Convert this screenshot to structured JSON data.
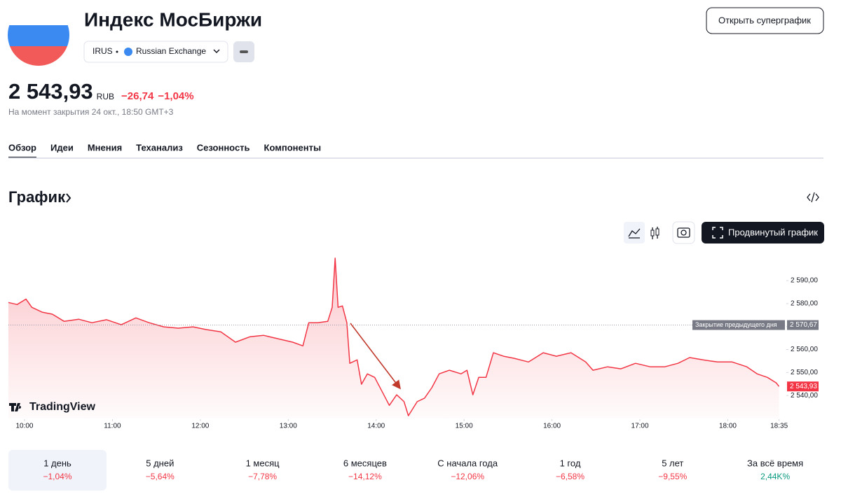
{
  "header": {
    "title": "Индекс МосБиржи",
    "ticker": "IRUS",
    "exchange": "Russian Exchange",
    "button": "Открыть суперграфик"
  },
  "quote": {
    "price": "2 543,93",
    "currency": "RUB",
    "change": "−26,74",
    "change_percent": "−1,04%",
    "note": "На момент закрытия 24 окт., 18:50 GMT+3"
  },
  "tabs": [
    "Обзор",
    "Идеи",
    "Мнения",
    "Теханализ",
    "Сезонность",
    "Компоненты"
  ],
  "section_title": "График",
  "toolbar": {
    "advanced_button": "Продвинутый график"
  },
  "chart_data": {
    "type": "line",
    "brand": "TradingView",
    "color": "#f23645",
    "x": [
      "09:49",
      "09:55",
      "10:01",
      "10:05",
      "10:12",
      "10:19",
      "10:27",
      "10:37",
      "10:46",
      "10:56",
      "11:06",
      "11:16",
      "11:25",
      "11:35",
      "11:45",
      "11:55",
      "12:04",
      "12:14",
      "12:24",
      "12:34",
      "12:43",
      "12:53",
      "13:03",
      "13:10",
      "13:14",
      "13:20",
      "13:27",
      "13:30",
      "13:32",
      "13:34",
      "13:37",
      "13:40",
      "13:42",
      "13:47",
      "13:50",
      "13:54",
      "13:59",
      "14:04",
      "14:09",
      "14:14",
      "14:19",
      "14:22",
      "14:28",
      "14:33",
      "14:38",
      "14:43",
      "14:50",
      "14:58",
      "15:02",
      "15:06",
      "15:10",
      "15:15",
      "15:20",
      "15:27",
      "15:34",
      "15:44",
      "15:54",
      "16:03",
      "16:13",
      "16:23",
      "16:28",
      "16:38",
      "16:47",
      "16:57",
      "17:07",
      "17:17",
      "17:26",
      "17:34",
      "17:43",
      "17:53",
      "18:03",
      "18:13",
      "18:20",
      "18:27",
      "18:33",
      "18:35"
    ],
    "values": [
      2580.5,
      2579.6,
      2582,
      2578.4,
      2576.3,
      2575.4,
      2572.3,
      2573.2,
      2571.7,
      2573,
      2570.8,
      2573.8,
      2571.7,
      2569.9,
      2569.3,
      2569.9,
      2568.7,
      2567.7,
      2563.2,
      2565.6,
      2566.2,
      2564.7,
      2563.2,
      2561.6,
      2571.7,
      2571.7,
      2572.3,
      2578.4,
      2599.8,
      2578.4,
      2579,
      2571.7,
      2554,
      2555.5,
      2544.9,
      2549.4,
      2547.9,
      2541.8,
      2535.7,
      2540.3,
      2537.3,
      2531.2,
      2537.3,
      2538.8,
      2543.4,
      2549.4,
      2551,
      2549.4,
      2551,
      2540.3,
      2547.9,
      2547.9,
      2558.6,
      2557.1,
      2556.2,
      2554.6,
      2558.6,
      2557.1,
      2558.6,
      2554.6,
      2551,
      2552.5,
      2551.6,
      2554,
      2552.5,
      2552.5,
      2554,
      2556.5,
      2555.5,
      2554.6,
      2554.6,
      2552.5,
      2549.4,
      2547.9,
      2545.5,
      2543.93
    ],
    "xlim": [
      "09:49",
      "18:39"
    ],
    "xticks": [
      "10:00",
      "11:00",
      "12:00",
      "13:00",
      "14:00",
      "15:00",
      "16:00",
      "17:00",
      "18:00",
      "18:35"
    ],
    "ylim": [
      2530,
      2601
    ],
    "yticks": [
      {
        "value": 2540,
        "label": "2 540,00"
      },
      {
        "value": 2550,
        "label": "2 550,00"
      },
      {
        "value": 2560,
        "label": "2 560,00"
      },
      {
        "value": 2570,
        "label": "2 570,00"
      },
      {
        "value": 2580,
        "label": "2 580,00"
      },
      {
        "value": 2590,
        "label": "2 590,00"
      }
    ],
    "grid": false,
    "previous_close": {
      "name": "Закрытие предыдущего дня",
      "value": 2570.67,
      "label": "2 570,67"
    },
    "last_value": {
      "value": 2543.93,
      "label": "2 543,93"
    }
  },
  "periods": [
    {
      "label": "1 день",
      "change": "−1,04%"
    },
    {
      "label": "5 дней",
      "change": "−5,64%"
    },
    {
      "label": "1 месяц",
      "change": "−7,78%"
    },
    {
      "label": "6 месяцев",
      "change": "−14,12%"
    },
    {
      "label": "С начала года",
      "change": "−12,06%"
    },
    {
      "label": "1 год",
      "change": "−6,58%"
    },
    {
      "label": "5 лет",
      "change": "−9,55%"
    },
    {
      "label": "За всё время",
      "change": "2,44K%"
    }
  ]
}
